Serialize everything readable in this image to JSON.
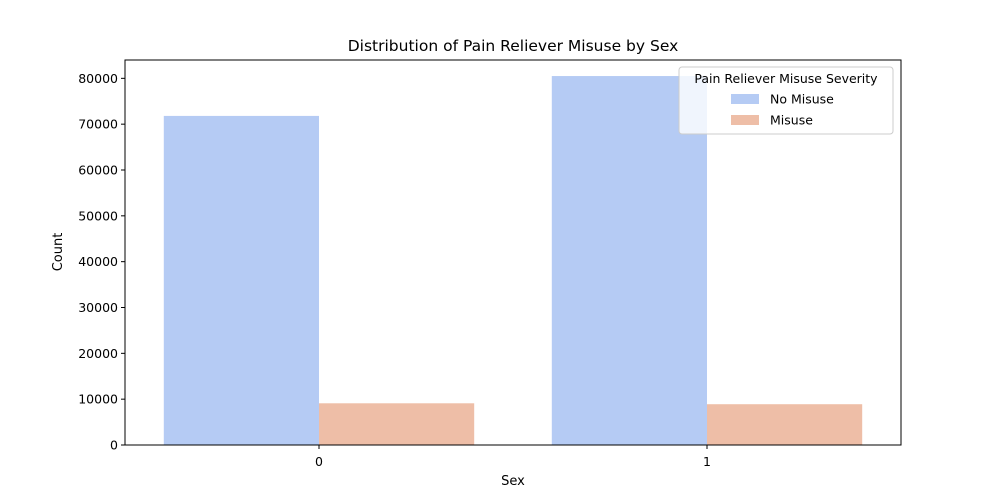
{
  "chart_data": {
    "type": "bar",
    "title": "Distribution of Pain Reliever Misuse by Sex",
    "xlabel": "Sex",
    "ylabel": "Count",
    "categories": [
      "0",
      "1"
    ],
    "ylim": [
      0,
      84000
    ],
    "yticks": [
      0,
      10000,
      20000,
      30000,
      40000,
      50000,
      60000,
      70000,
      80000
    ],
    "grid": false,
    "legend": {
      "title": "Pain Reliever Misuse Severity",
      "placement": "top-right"
    },
    "series": [
      {
        "name": "No Misuse",
        "color": "#b5cbf4",
        "values": [
          71800,
          80500
        ]
      },
      {
        "name": "Misuse",
        "color": "#eebea7",
        "values": [
          9100,
          8900
        ]
      }
    ]
  }
}
